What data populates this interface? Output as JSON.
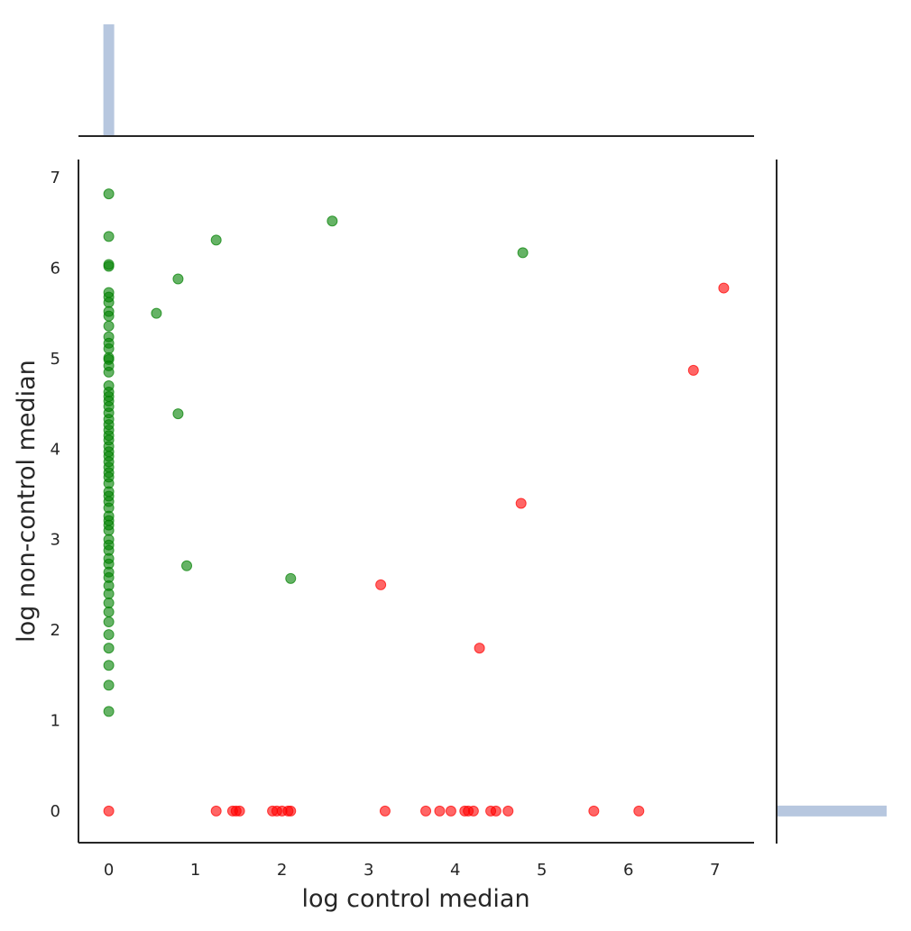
{
  "chart_data": {
    "type": "scatter",
    "title": "",
    "xlabel": "log control median",
    "ylabel": "log non-control median",
    "xlim": [
      -0.35,
      7.45
    ],
    "ylim": [
      -0.35,
      7.2
    ],
    "xticks": [
      "0",
      "1",
      "2",
      "3",
      "4",
      "5",
      "6",
      "7"
    ],
    "yticks": [
      "0",
      "1",
      "2",
      "3",
      "4",
      "5",
      "6",
      "7"
    ],
    "grid": false,
    "legend": "none",
    "marginal_top": {
      "type": "histogram",
      "bin_value": 0.0
    },
    "marginal_right": {
      "type": "histogram",
      "bin_value": 0.0
    },
    "series": [
      {
        "color": "#008000",
        "points": [
          [
            0,
            6.82
          ],
          [
            0,
            6.35
          ],
          [
            0,
            6.04
          ],
          [
            0,
            6.02
          ],
          [
            0,
            5.73
          ],
          [
            0,
            5.68
          ],
          [
            0,
            5.62
          ],
          [
            0,
            5.52
          ],
          [
            0,
            5.47
          ],
          [
            0,
            5.36
          ],
          [
            0,
            5.24
          ],
          [
            0,
            5.17
          ],
          [
            0,
            5.11
          ],
          [
            0,
            5.01
          ],
          [
            0,
            4.99
          ],
          [
            0,
            4.92
          ],
          [
            0,
            4.85
          ],
          [
            0,
            4.7
          ],
          [
            0,
            4.63
          ],
          [
            0,
            4.58
          ],
          [
            0,
            4.53
          ],
          [
            0,
            4.47
          ],
          [
            0,
            4.4
          ],
          [
            0,
            4.33
          ],
          [
            0,
            4.27
          ],
          [
            0,
            4.21
          ],
          [
            0,
            4.15
          ],
          [
            0,
            4.1
          ],
          [
            0,
            4.03
          ],
          [
            0,
            3.97
          ],
          [
            0,
            3.92
          ],
          [
            0,
            3.86
          ],
          [
            0,
            3.8
          ],
          [
            0,
            3.74
          ],
          [
            0,
            3.69
          ],
          [
            0,
            3.62
          ],
          [
            0,
            3.53
          ],
          [
            0,
            3.48
          ],
          [
            0,
            3.42
          ],
          [
            0,
            3.35
          ],
          [
            0,
            3.26
          ],
          [
            0,
            3.21
          ],
          [
            0,
            3.16
          ],
          [
            0,
            3.1
          ],
          [
            0,
            3.0
          ],
          [
            0,
            2.94
          ],
          [
            0,
            2.88
          ],
          [
            0,
            2.79
          ],
          [
            0,
            2.73
          ],
          [
            0,
            2.64
          ],
          [
            0,
            2.58
          ],
          [
            0,
            2.49
          ],
          [
            0,
            2.4
          ],
          [
            0,
            2.3
          ],
          [
            0,
            2.2
          ],
          [
            0,
            2.09
          ],
          [
            0,
            1.95
          ],
          [
            0,
            1.8
          ],
          [
            0,
            1.61
          ],
          [
            0,
            1.39
          ],
          [
            0,
            1.1
          ],
          [
            0.55,
            5.5
          ],
          [
            0.8,
            5.88
          ],
          [
            0.8,
            4.39
          ],
          [
            0.9,
            2.71
          ],
          [
            1.24,
            6.31
          ],
          [
            2.1,
            2.57
          ],
          [
            2.58,
            6.52
          ],
          [
            4.78,
            6.17
          ]
        ]
      },
      {
        "color": "#ff0000",
        "points": [
          [
            0,
            0
          ],
          [
            1.24,
            0
          ],
          [
            1.43,
            0
          ],
          [
            1.47,
            0
          ],
          [
            1.51,
            0
          ],
          [
            1.89,
            0
          ],
          [
            1.94,
            0
          ],
          [
            2.0,
            0
          ],
          [
            2.07,
            0
          ],
          [
            2.1,
            0
          ],
          [
            3.19,
            0
          ],
          [
            3.66,
            0
          ],
          [
            3.82,
            0
          ],
          [
            3.95,
            0
          ],
          [
            4.11,
            0
          ],
          [
            4.15,
            0
          ],
          [
            4.21,
            0
          ],
          [
            4.41,
            0
          ],
          [
            4.47,
            0
          ],
          [
            4.61,
            0
          ],
          [
            5.6,
            0
          ],
          [
            6.12,
            0
          ],
          [
            3.14,
            2.5
          ],
          [
            4.28,
            1.8
          ],
          [
            4.76,
            3.4
          ],
          [
            6.75,
            4.87
          ],
          [
            7.1,
            5.78
          ]
        ]
      }
    ]
  }
}
